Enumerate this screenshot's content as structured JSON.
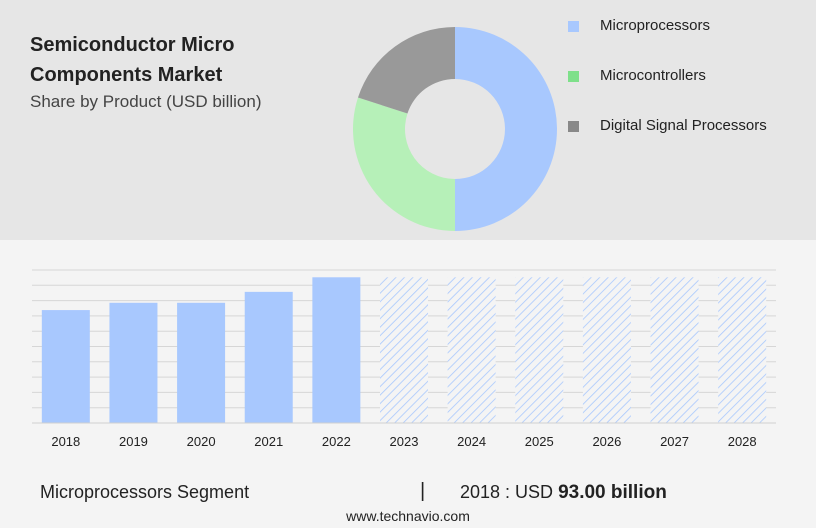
{
  "title_line1": "Semiconductor Micro",
  "title_line2": "Components Market",
  "subtitle": "Share by Product (USD billion)",
  "colors": {
    "microprocessors": "#a8c8fe",
    "microcontrollers": "#b6f0b8",
    "dsp": "#999999",
    "legend_microcontrollers": "#7ee08a",
    "legend_dsp": "#888888"
  },
  "footer": {
    "segment": "Microprocessors Segment",
    "separator": "|",
    "year_label": "2018 : USD ",
    "value_label": "93.00 billion",
    "url": "www.technavio.com"
  },
  "chart_data": [
    {
      "type": "pie",
      "style": "donut",
      "categories": [
        "Microprocessors",
        "Microcontrollers",
        "Digital Signal Processors"
      ],
      "values": [
        50,
        30,
        20
      ],
      "legend_position": "right"
    },
    {
      "type": "bar",
      "categories": [
        "2018",
        "2019",
        "2020",
        "2021",
        "2022",
        "2023",
        "2024",
        "2025",
        "2026",
        "2027",
        "2028"
      ],
      "values": [
        93.0,
        99.0,
        99.0,
        108.0,
        120.0,
        120.0,
        120.0,
        120.0,
        120.0,
        120.0,
        120.0
      ],
      "forecast_from": "2023",
      "ylim": [
        0,
        126
      ],
      "grid": true,
      "xlabel": "",
      "ylabel": ""
    }
  ]
}
